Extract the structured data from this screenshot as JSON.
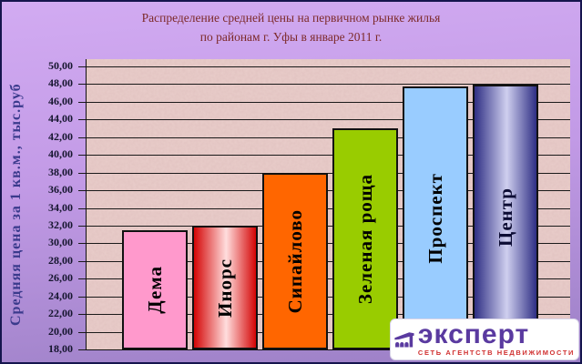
{
  "title": {
    "line1": "Распределение средней цены на первичном рынке жилья",
    "line2": "по районам г. Уфы в январе 2011 г."
  },
  "chart_data": {
    "type": "bar",
    "title": "Распределение средней цены на первичном рынке жилья по районам г. Уфы в январе 2011 г.",
    "xlabel": "",
    "ylabel": "Средняя цена за 1 кв.м., тыс.руб",
    "categories": [
      "Дема",
      "Инорс",
      "Сипайлово",
      "Зеленая роща",
      "Проспект",
      "Центр"
    ],
    "values": [
      31.5,
      32.0,
      38.0,
      43.0,
      47.7,
      47.9
    ],
    "ylim": [
      18,
      50
    ],
    "ytick_step": 2,
    "ytick_labels": [
      "50,00",
      "48,00",
      "46,00",
      "44,00",
      "42,00",
      "40,00",
      "38,00",
      "36,00",
      "34,00",
      "32,00",
      "30,00",
      "28,00",
      "26,00",
      "24,00",
      "22,00",
      "20,00",
      "18,00"
    ],
    "grid": true,
    "legend": false,
    "labels_inside_bars": true,
    "bar_styles": [
      {
        "fill": "#ff99cc",
        "label_color": "#000000"
      },
      {
        "gradient": {
          "edge": "#d40505",
          "mid": "#ffdede"
        },
        "label_color": "#000000"
      },
      {
        "fill": "#ff6600",
        "label_color": "#000000"
      },
      {
        "fill": "#99cc00",
        "label_color": "#000000"
      },
      {
        "fill": "#99ccff",
        "label_color": "#000000"
      },
      {
        "gradient": {
          "edge": "#2f2f84",
          "mid": "#cfcfef"
        },
        "label_color": "#0c0c34"
      }
    ]
  },
  "logo": {
    "wordmark": "эксперт",
    "tagline": "СЕТЬ АГЕНТСТВ НЕДВИЖИМОСТИ",
    "icon": "building-arches-icon"
  },
  "colors": {
    "background_top": "#d2abf2",
    "background_bottom": "#9c80c6",
    "frame_border": "#15154d",
    "title_text": "#7d2a2a",
    "tick_text": "#15152e",
    "ylabel_text": "#3a3a8c",
    "plot_background": "#e9cdca",
    "gridline": "#1a1a1a",
    "logo_purple": "#5a3aa0",
    "logo_red": "#d03030",
    "logo_background": "#ffffff"
  }
}
